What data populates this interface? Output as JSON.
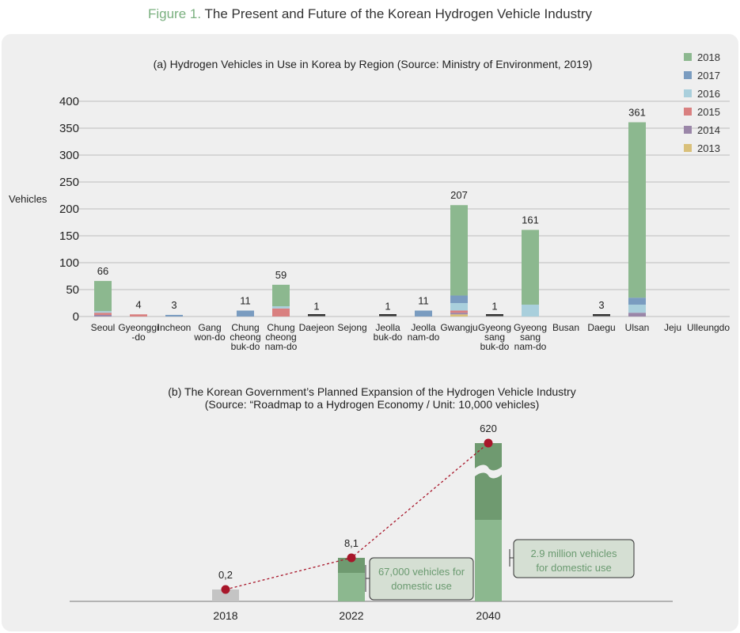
{
  "figure": {
    "label": "Figure 1.",
    "title": "The Present and Future of the Korean Hydrogen Vehicle Industry"
  },
  "colors": {
    "2018": "#8cb88f",
    "2017": "#7a9cc0",
    "2016": "#a9cfdc",
    "2015": "#d98080",
    "2014": "#9a86a8",
    "2013": "#d9c07a",
    "panel_bg": "#efefef",
    "grid": "#bdbdbd",
    "trend": "#a8162a",
    "bar_2018_b": "#c4c4c4",
    "bar_dark": "#6f9a70",
    "bar_light": "#8cb88f",
    "callout_bg": "#d5dfd3",
    "callout_text": "#6a9a70"
  },
  "chart_data": [
    {
      "type": "bar",
      "stacked": true,
      "title": "(a) Hydrogen Vehicles in Use in Korea by Region (Source: Ministry of Environment, 2019)",
      "ylabel": "Vehicles",
      "ylim": [
        0,
        400
      ],
      "yticks": [
        0,
        50,
        100,
        150,
        200,
        250,
        300,
        350,
        400
      ],
      "grid": true,
      "legend_position": "top-right",
      "categories": [
        "Seoul",
        "Gyeonggi -do",
        "Incheon",
        "Gang won-do",
        "Chung cheong buk-do",
        "Chung cheong nam-do",
        "Daejeon",
        "Sejong",
        "Jeolla buk-do",
        "Jeolla nam-do",
        "Gwangju",
        "Gyeong sang buk-do",
        "Gyeong sang nam-do",
        "Busan",
        "Daegu",
        "Ulsan",
        "Jeju",
        "Ulleungdo"
      ],
      "category_lines": [
        [
          "Seoul"
        ],
        [
          "Gyeonggi",
          "-do"
        ],
        [
          "Incheon"
        ],
        [
          "Gang",
          "won-do"
        ],
        [
          "Chung",
          "cheong",
          "buk-do"
        ],
        [
          "Chung",
          "cheong",
          "nam-do"
        ],
        [
          "Daejeon"
        ],
        [
          "Sejong"
        ],
        [
          "Jeolla",
          "buk-do"
        ],
        [
          "Jeolla",
          "nam-do"
        ],
        [
          "Gwangju"
        ],
        [
          "Gyeong",
          "sang",
          "buk-do"
        ],
        [
          "Gyeong",
          "sang",
          "nam-do"
        ],
        [
          "Busan"
        ],
        [
          "Daegu"
        ],
        [
          "Ulsan"
        ],
        [
          "Jeju"
        ],
        [
          "Ulleungdo"
        ]
      ],
      "series": [
        {
          "name": "2013",
          "values": [
            0,
            0,
            0,
            0,
            0,
            0,
            0,
            0,
            0,
            0,
            4,
            0,
            0,
            0,
            0,
            0,
            0,
            0
          ]
        },
        {
          "name": "2014",
          "values": [
            3,
            0,
            0,
            0,
            0,
            0,
            0,
            0,
            0,
            0,
            3,
            0,
            0,
            0,
            0,
            7,
            0,
            0
          ]
        },
        {
          "name": "2015",
          "values": [
            4,
            4,
            0,
            0,
            0,
            15,
            0,
            0,
            0,
            0,
            4,
            0,
            0,
            0,
            0,
            0,
            0,
            0
          ]
        },
        {
          "name": "2016",
          "values": [
            3,
            0,
            0,
            0,
            0,
            4,
            0,
            0,
            0,
            0,
            14,
            0,
            22,
            0,
            0,
            15,
            0,
            0
          ]
        },
        {
          "name": "2017",
          "values": [
            0,
            0,
            3,
            0,
            11,
            0,
            0,
            0,
            0,
            11,
            14,
            0,
            0,
            0,
            0,
            13,
            0,
            0
          ]
        },
        {
          "name": "2018",
          "values": [
            56,
            0,
            0,
            0,
            0,
            40,
            0,
            0,
            0,
            0,
            168,
            0,
            139,
            0,
            0,
            326,
            0,
            0
          ]
        }
      ],
      "data_labels": [
        "66",
        "4",
        "3",
        "",
        "11",
        "59",
        "1",
        "",
        "1",
        "11",
        "207",
        "1",
        "161",
        "",
        "3",
        "361",
        "",
        ""
      ],
      "small_markers": [
        0,
        0,
        0,
        0,
        0,
        0,
        1,
        0,
        1,
        0,
        0,
        1,
        0,
        0,
        3,
        0,
        0,
        0
      ],
      "legend": [
        "2018",
        "2017",
        "2016",
        "2015",
        "2014",
        "2013"
      ]
    },
    {
      "type": "bar",
      "title_lines": [
        "(b) The Korean Government’s Planned Expansion of the Hydrogen Vehicle Industry",
        "(Source: “Roadmap to a Hydrogen Economy / Unit: 10,000 vehicles)"
      ],
      "categories": [
        "2018",
        "2022",
        "2040"
      ],
      "values": [
        0.2,
        8.1,
        620
      ],
      "value_labels": [
        "0,2",
        "8,1",
        "620"
      ],
      "domestic_values": [
        null,
        6.7,
        290
      ],
      "broken_axis": true,
      "trend_line": true,
      "callouts": [
        {
          "category": "2022",
          "lines": [
            "67,000 vehicles for",
            "domestic use"
          ]
        },
        {
          "category": "2040",
          "lines": [
            "2.9 million vehicles",
            "for domestic use"
          ]
        }
      ]
    }
  ]
}
